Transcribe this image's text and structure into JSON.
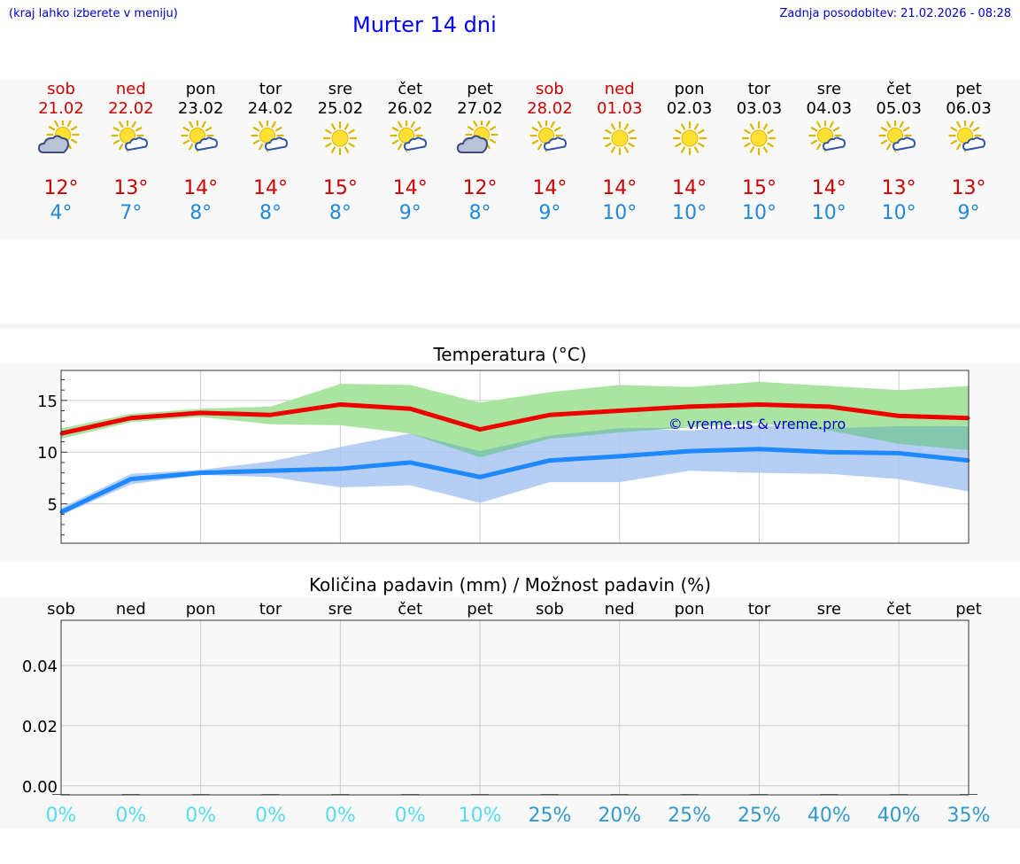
{
  "header": {
    "hint": "(kraj lahko izberete v meniju)",
    "title": "Murter 14 dni",
    "updated": "Zadnja posodobitev: 21.02.2026 - 08:28"
  },
  "days": [
    {
      "name": "sob",
      "date": "21.02",
      "weekend": true,
      "icon": "sun-cloud-icon",
      "max": "12°",
      "min": "4°"
    },
    {
      "name": "ned",
      "date": "22.02",
      "weekend": true,
      "icon": "sun-small-cloud-icon",
      "max": "13°",
      "min": "7°"
    },
    {
      "name": "pon",
      "date": "23.02",
      "weekend": false,
      "icon": "sun-small-cloud-icon",
      "max": "14°",
      "min": "8°"
    },
    {
      "name": "tor",
      "date": "24.02",
      "weekend": false,
      "icon": "sun-small-cloud-icon",
      "max": "14°",
      "min": "8°"
    },
    {
      "name": "sre",
      "date": "25.02",
      "weekend": false,
      "icon": "sun-icon",
      "max": "15°",
      "min": "8°"
    },
    {
      "name": "čet",
      "date": "26.02",
      "weekend": false,
      "icon": "sun-small-cloud-icon",
      "max": "14°",
      "min": "9°"
    },
    {
      "name": "pet",
      "date": "27.02",
      "weekend": false,
      "icon": "sun-cloud-icon",
      "max": "12°",
      "min": "8°"
    },
    {
      "name": "sob",
      "date": "28.02",
      "weekend": true,
      "icon": "sun-small-cloud-icon",
      "max": "14°",
      "min": "9°"
    },
    {
      "name": "ned",
      "date": "01.03",
      "weekend": true,
      "icon": "sun-icon",
      "max": "14°",
      "min": "10°"
    },
    {
      "name": "pon",
      "date": "02.03",
      "weekend": false,
      "icon": "sun-icon",
      "max": "14°",
      "min": "10°"
    },
    {
      "name": "tor",
      "date": "03.03",
      "weekend": false,
      "icon": "sun-icon",
      "max": "15°",
      "min": "10°"
    },
    {
      "name": "sre",
      "date": "04.03",
      "weekend": false,
      "icon": "sun-small-cloud-icon",
      "max": "14°",
      "min": "10°"
    },
    {
      "name": "čet",
      "date": "05.03",
      "weekend": false,
      "icon": "sun-small-cloud-icon",
      "max": "13°",
      "min": "10°"
    },
    {
      "name": "pet",
      "date": "06.03",
      "weekend": false,
      "icon": "sun-small-cloud-icon",
      "max": "13°",
      "min": "9°"
    }
  ],
  "colors": {
    "max_line": "#ee0000",
    "min_line": "#1e88ff",
    "max_band": "#a9e5a0",
    "min_band": "#a9c4f2",
    "overlap_band": "#7fc6a8",
    "weekend_text": "#cc0000",
    "prob_low": "#55ddee",
    "prob_high": "#3399cc"
  },
  "chart_data": [
    {
      "type": "line",
      "title": "Temperatura (°C)",
      "watermark": "© vreme.us & vreme.pro",
      "x": [
        0,
        1,
        2,
        3,
        4,
        5,
        6,
        7,
        8,
        9,
        10,
        11,
        12,
        13
      ],
      "ylim": [
        1.2,
        17.9
      ],
      "yticks": [
        5,
        10,
        15
      ],
      "series": [
        {
          "name": "max",
          "values": [
            11.8,
            13.3,
            13.8,
            13.6,
            14.6,
            14.2,
            12.2,
            13.6,
            14.0,
            14.4,
            14.6,
            14.4,
            13.5,
            13.3
          ]
        },
        {
          "name": "min",
          "values": [
            4.2,
            7.4,
            8.0,
            8.2,
            8.4,
            9.0,
            7.6,
            9.2,
            9.6,
            10.1,
            10.3,
            10.0,
            9.9,
            9.2
          ]
        }
      ],
      "bands": [
        {
          "name": "max-range",
          "low": [
            11.3,
            12.9,
            13.4,
            12.7,
            12.6,
            11.8,
            9.5,
            11.3,
            11.9,
            12.4,
            12.8,
            12.1,
            10.8,
            10.2
          ],
          "high": [
            12.3,
            13.7,
            14.2,
            14.4,
            16.6,
            16.5,
            14.8,
            15.8,
            16.5,
            16.3,
            16.8,
            16.4,
            16.0,
            16.4
          ]
        },
        {
          "name": "min-range",
          "low": [
            3.9,
            6.9,
            7.8,
            7.6,
            6.6,
            6.8,
            5.1,
            7.1,
            7.1,
            8.2,
            8.0,
            7.9,
            7.4,
            6.2
          ],
          "high": [
            4.6,
            7.9,
            8.3,
            9.1,
            10.5,
            11.8,
            10.1,
            11.6,
            12.3,
            12.1,
            12.6,
            12.3,
            12.5,
            12.5
          ]
        }
      ]
    },
    {
      "type": "bar",
      "title": "Količina padavin (mm) / Možnost padavin (%)",
      "categories": [
        "sob",
        "ned",
        "pon",
        "tor",
        "sre",
        "čet",
        "pet",
        "sob",
        "ned",
        "pon",
        "tor",
        "sre",
        "čet",
        "pet"
      ],
      "values": [
        0,
        0,
        0,
        0,
        0,
        0,
        0,
        0,
        0,
        0,
        0,
        0,
        0,
        0
      ],
      "ylim": [
        -0.003,
        0.055
      ],
      "yticks": [
        "0.00",
        "0.02",
        "0.04"
      ],
      "ytick_values": [
        0,
        0.02,
        0.04
      ],
      "probability": [
        "0%",
        "0%",
        "0%",
        "0%",
        "0%",
        "0%",
        "10%",
        "25%",
        "20%",
        "25%",
        "25%",
        "40%",
        "40%",
        "35%"
      ]
    }
  ]
}
